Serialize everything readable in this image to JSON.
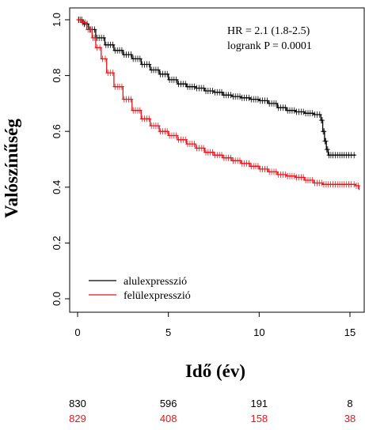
{
  "chart_data": {
    "type": "line",
    "subtype": "kaplan-meier",
    "xlabel": "Idő (év)",
    "ylabel": "Valószínűség",
    "xlim": [
      0,
      15.5
    ],
    "ylim": [
      0,
      1.0
    ],
    "xticks": [
      0,
      5,
      10,
      15
    ],
    "yticks": [
      0.0,
      0.2,
      0.4,
      0.6,
      0.8,
      1.0
    ],
    "grid": false,
    "legend_position": "bottom-left",
    "annotations": [
      "HR = 2.1 (1.8-2.5)",
      "logrank P = 0.0001"
    ],
    "series": [
      {
        "name": "alulexpresszió",
        "color": "#000000",
        "x": [
          0,
          0.3,
          0.6,
          1.0,
          1.5,
          2.0,
          2.5,
          3.0,
          3.5,
          4.0,
          4.5,
          5.0,
          5.5,
          6.0,
          6.5,
          7.0,
          7.5,
          8.0,
          8.5,
          9.0,
          9.5,
          10.0,
          10.5,
          11.0,
          11.5,
          12.0,
          12.5,
          13.0,
          13.4,
          13.5,
          13.6,
          13.7,
          13.8,
          14.0,
          14.5,
          15.0,
          15.3
        ],
        "y": [
          1.0,
          0.985,
          0.965,
          0.935,
          0.91,
          0.89,
          0.875,
          0.86,
          0.84,
          0.82,
          0.805,
          0.785,
          0.77,
          0.76,
          0.755,
          0.745,
          0.74,
          0.73,
          0.725,
          0.72,
          0.715,
          0.71,
          0.7,
          0.685,
          0.675,
          0.67,
          0.665,
          0.66,
          0.64,
          0.6,
          0.565,
          0.535,
          0.515,
          0.515,
          0.515,
          0.515,
          0.515
        ]
      },
      {
        "name": "felülexpresszió",
        "color": "#e8141b",
        "x": [
          0,
          0.2,
          0.5,
          0.8,
          1.0,
          1.3,
          1.6,
          2.0,
          2.5,
          3.0,
          3.5,
          4.0,
          4.5,
          5.0,
          5.5,
          6.0,
          6.5,
          7.0,
          7.5,
          8.0,
          8.5,
          9.0,
          9.5,
          10.0,
          10.5,
          11.0,
          11.5,
          12.0,
          12.5,
          13.0,
          13.5,
          14.0,
          14.5,
          15.0,
          15.3,
          15.5
        ],
        "y": [
          1.0,
          0.99,
          0.965,
          0.935,
          0.9,
          0.86,
          0.81,
          0.76,
          0.715,
          0.675,
          0.645,
          0.62,
          0.6,
          0.585,
          0.57,
          0.555,
          0.54,
          0.525,
          0.515,
          0.505,
          0.495,
          0.485,
          0.475,
          0.465,
          0.455,
          0.445,
          0.44,
          0.435,
          0.425,
          0.415,
          0.41,
          0.41,
          0.41,
          0.41,
          0.405,
          0.39
        ]
      }
    ],
    "risk_table": {
      "times": [
        0,
        5,
        10,
        15
      ],
      "rows": [
        {
          "series": "alulexpresszió",
          "color": "#000000",
          "values": [
            "830",
            "596",
            "191",
            "8"
          ]
        },
        {
          "series": "felülexpresszió",
          "color": "#e8141b",
          "values": [
            "829",
            "408",
            "158",
            "38"
          ]
        }
      ]
    }
  }
}
